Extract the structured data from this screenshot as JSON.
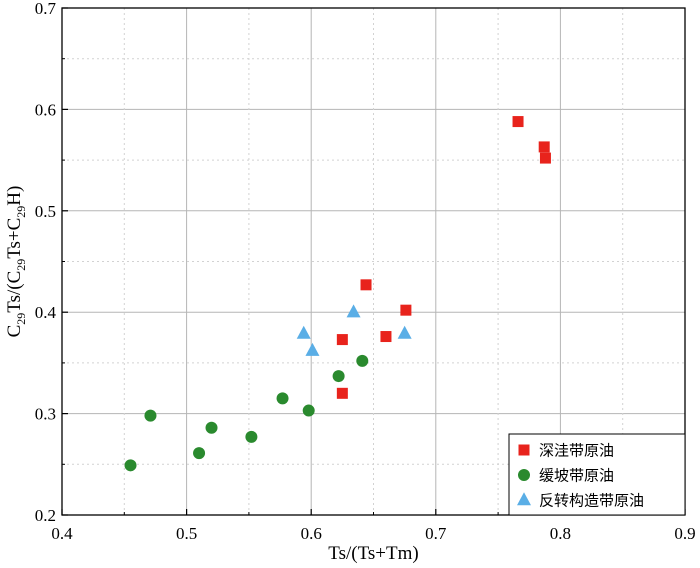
{
  "chart_data": {
    "type": "scatter",
    "xlabel": "Ts/(Ts+Tm)",
    "ylabel_parts": [
      "C",
      "29",
      "Ts/(C",
      "29",
      "Ts+C",
      "29",
      "H)"
    ],
    "xlim": [
      0.4,
      0.9
    ],
    "ylim": [
      0.2,
      0.7
    ],
    "x_ticks": [
      "0.4",
      "0.5",
      "0.6",
      "0.7",
      "0.8",
      "0.9"
    ],
    "y_ticks": [
      "0.2",
      "0.3",
      "0.4",
      "0.5",
      "0.6",
      "0.7"
    ],
    "grid": true,
    "legend_position": "bottom-right",
    "series": [
      {
        "name": "深洼带原油",
        "marker": "square",
        "color": "#e8231c",
        "points": [
          [
            0.766,
            0.588
          ],
          [
            0.787,
            0.563
          ],
          [
            0.788,
            0.552
          ],
          [
            0.644,
            0.427
          ],
          [
            0.676,
            0.402
          ],
          [
            0.625,
            0.373
          ],
          [
            0.66,
            0.376
          ],
          [
            0.625,
            0.32
          ]
        ]
      },
      {
        "name": "缓坡带原油",
        "marker": "circle",
        "color": "#2a8a2e",
        "points": [
          [
            0.455,
            0.249
          ],
          [
            0.471,
            0.298
          ],
          [
            0.51,
            0.261
          ],
          [
            0.52,
            0.286
          ],
          [
            0.552,
            0.277
          ],
          [
            0.577,
            0.315
          ],
          [
            0.598,
            0.303
          ],
          [
            0.622,
            0.337
          ],
          [
            0.641,
            0.352
          ]
        ]
      },
      {
        "name": "反转构造带原油",
        "marker": "triangle",
        "color": "#5aaee6",
        "points": [
          [
            0.594,
            0.379
          ],
          [
            0.601,
            0.362
          ],
          [
            0.634,
            0.4
          ],
          [
            0.675,
            0.379
          ]
        ]
      }
    ]
  }
}
